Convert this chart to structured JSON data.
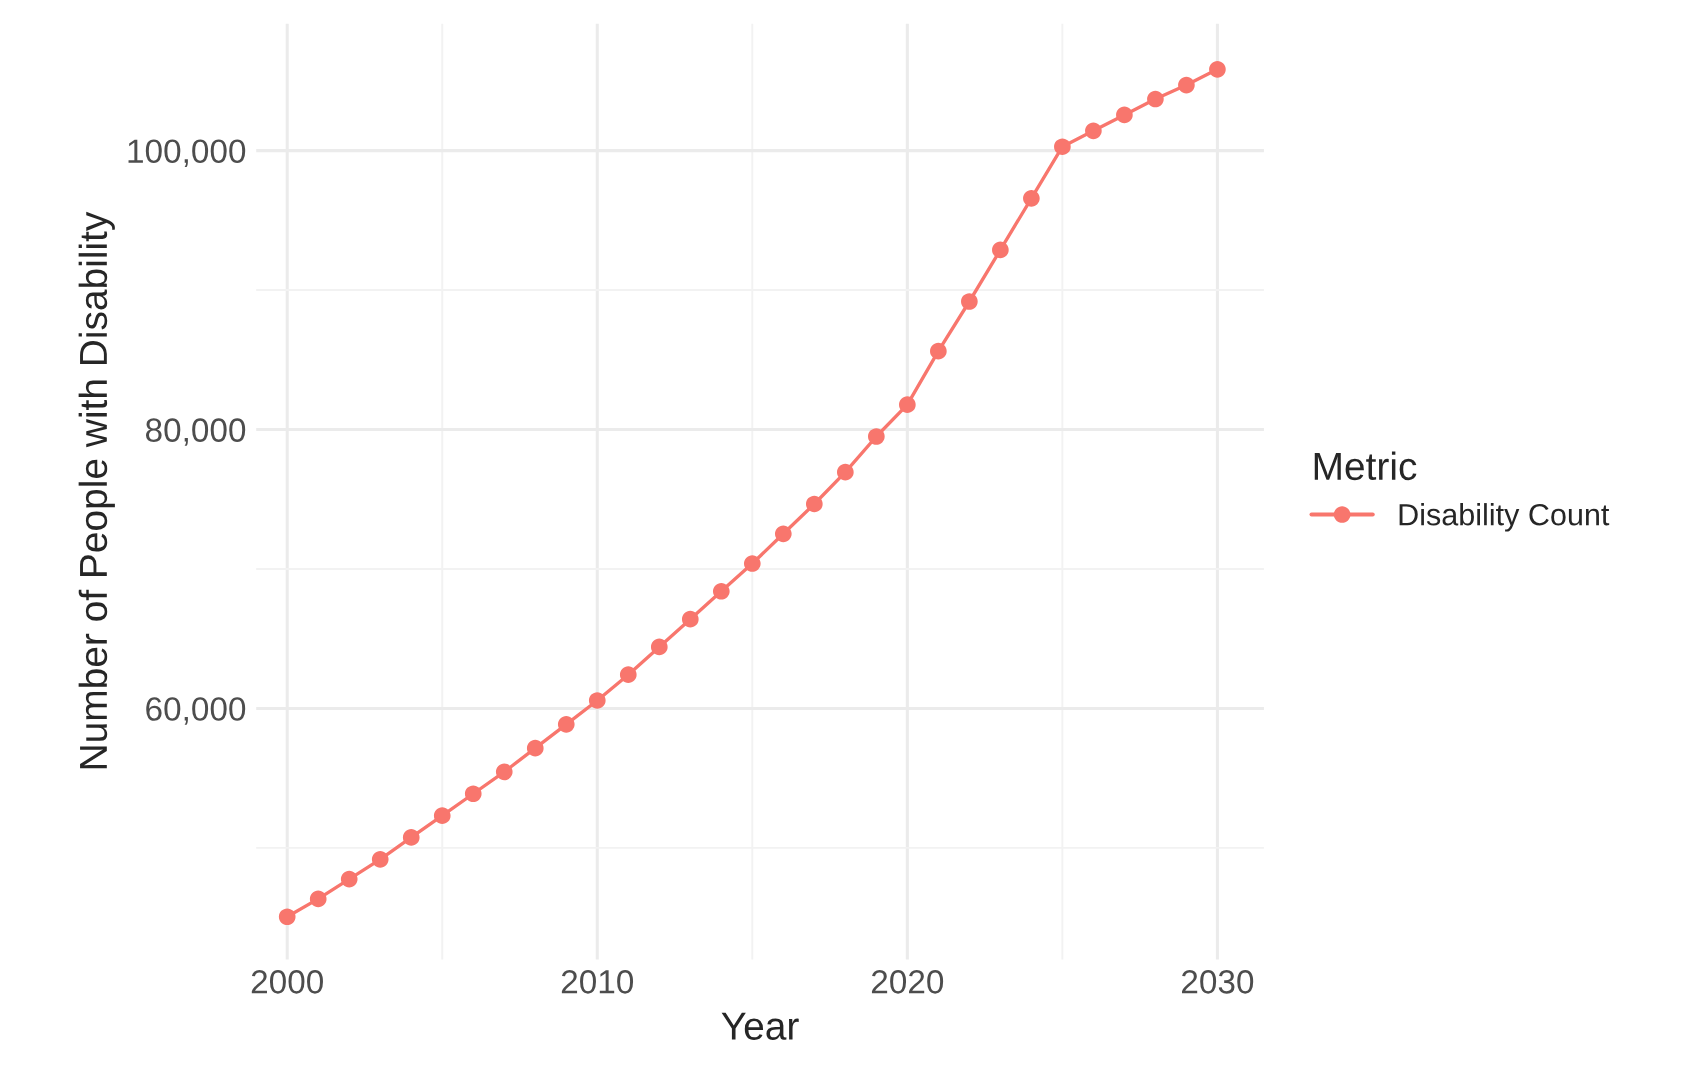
{
  "chart_data": {
    "type": "line",
    "xlabel": "Year",
    "ylabel": "Number of People with Disability",
    "legend_title": "Metric",
    "x": [
      2000,
      2001,
      2002,
      2003,
      2004,
      2005,
      2006,
      2007,
      2008,
      2009,
      2010,
      2011,
      2012,
      2013,
      2014,
      2015,
      2016,
      2017,
      2018,
      2019,
      2020,
      2021,
      2022,
      2023,
      2024,
      2025,
      2026,
      2027,
      2028,
      2029,
      2030
    ],
    "series": [
      {
        "name": "Disability Count",
        "color": "#f8766d",
        "values": [
          45060,
          46340,
          47760,
          49180,
          50750,
          52310,
          53880,
          55450,
          57150,
          58860,
          60570,
          62420,
          64410,
          66400,
          68400,
          70390,
          72520,
          74660,
          76940,
          79500,
          81780,
          85620,
          89180,
          92880,
          96580,
          100280,
          101420,
          102560,
          103700,
          104700,
          105830
        ]
      }
    ],
    "xlim": [
      1999,
      2031.5
    ],
    "xticks": [
      2000,
      2010,
      2020,
      2030
    ],
    "ylim": [
      42000,
      109100
    ],
    "yticks": [
      {
        "value": 60000,
        "label": "60,000"
      },
      {
        "value": 80000,
        "label": "80,000"
      },
      {
        "value": 100000,
        "label": "100,000"
      }
    ],
    "grid": true,
    "legend": "right",
    "marker": "circle",
    "line_style": "solid"
  }
}
